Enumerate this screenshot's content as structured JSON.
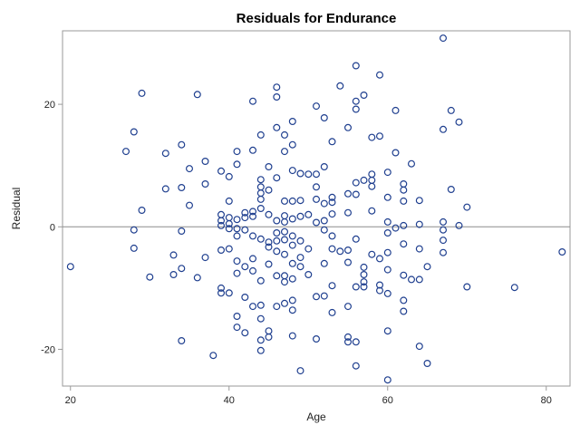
{
  "chart_data": {
    "type": "scatter",
    "title": "Residuals for Endurance",
    "xlabel": "Age",
    "ylabel": "Residual",
    "xlim": [
      19,
      83
    ],
    "ylim": [
      -26,
      32
    ],
    "xticks": [
      20,
      40,
      60,
      80
    ],
    "yticks": [
      -20,
      0,
      20
    ],
    "reference_line_y": 0,
    "grid": false,
    "legend": "none",
    "marker": "open-circle",
    "marker_color": "#1f3f8f",
    "points": [
      [
        20,
        -6.5
      ],
      [
        27,
        12.3
      ],
      [
        28,
        15.5
      ],
      [
        28,
        -0.5
      ],
      [
        28,
        -3.5
      ],
      [
        29,
        21.8
      ],
      [
        29,
        2.7
      ],
      [
        30,
        -8.2
      ],
      [
        32,
        12.0
      ],
      [
        32,
        6.2
      ],
      [
        33,
        -4.6
      ],
      [
        33,
        -7.8
      ],
      [
        34,
        13.4
      ],
      [
        34,
        6.4
      ],
      [
        34,
        -0.7
      ],
      [
        34,
        -6.8
      ],
      [
        34,
        -18.6
      ],
      [
        35,
        9.5
      ],
      [
        35,
        3.5
      ],
      [
        36,
        21.6
      ],
      [
        36,
        -8.3
      ],
      [
        37,
        10.7
      ],
      [
        37,
        7.0
      ],
      [
        37,
        -5.0
      ],
      [
        38,
        -21.0
      ],
      [
        39,
        9.1
      ],
      [
        39,
        2.0
      ],
      [
        39,
        1.0
      ],
      [
        39,
        0.2
      ],
      [
        39,
        -3.8
      ],
      [
        39,
        -10.0
      ],
      [
        39,
        -10.8
      ],
      [
        40,
        8.2
      ],
      [
        40,
        4.2
      ],
      [
        40,
        1.5
      ],
      [
        40,
        0.5
      ],
      [
        40,
        -0.3
      ],
      [
        40,
        -3.6
      ],
      [
        40,
        -10.8
      ],
      [
        41,
        12.3
      ],
      [
        41,
        10.2
      ],
      [
        41,
        1.2
      ],
      [
        41,
        -0.3
      ],
      [
        41,
        -1.5
      ],
      [
        41,
        -5.6
      ],
      [
        41,
        -7.6
      ],
      [
        41,
        -14.6
      ],
      [
        41,
        -16.4
      ],
      [
        42,
        2.3
      ],
      [
        42,
        1.5
      ],
      [
        42,
        -0.5
      ],
      [
        42,
        -6.5
      ],
      [
        42,
        -11.5
      ],
      [
        42,
        -17.3
      ],
      [
        43,
        20.5
      ],
      [
        43,
        12.5
      ],
      [
        43,
        2.5
      ],
      [
        43,
        1.7
      ],
      [
        43,
        -1.5
      ],
      [
        43,
        -5.2
      ],
      [
        43,
        -7.2
      ],
      [
        43,
        -13.0
      ],
      [
        44,
        15.0
      ],
      [
        44,
        7.7
      ],
      [
        44,
        6.5
      ],
      [
        44,
        5.5
      ],
      [
        44,
        4.5
      ],
      [
        44,
        3.0
      ],
      [
        44,
        -2.0
      ],
      [
        44,
        -8.8
      ],
      [
        44,
        -12.8
      ],
      [
        44,
        -15.0
      ],
      [
        44,
        -18.5
      ],
      [
        44,
        -20.2
      ],
      [
        45,
        9.8
      ],
      [
        45,
        6.0
      ],
      [
        45,
        2.0
      ],
      [
        45,
        -2.5
      ],
      [
        45,
        -3.3
      ],
      [
        45,
        -6.1
      ],
      [
        45,
        -17.0
      ],
      [
        45,
        -18.0
      ],
      [
        46,
        22.8
      ],
      [
        46,
        21.2
      ],
      [
        46,
        16.2
      ],
      [
        46,
        8.0
      ],
      [
        46,
        1.0
      ],
      [
        46,
        -1.0
      ],
      [
        46,
        -2.3
      ],
      [
        46,
        -4.0
      ],
      [
        46,
        -8.0
      ],
      [
        46,
        -13.0
      ],
      [
        47,
        15.0
      ],
      [
        47,
        12.3
      ],
      [
        47,
        4.2
      ],
      [
        47,
        1.8
      ],
      [
        47,
        0.8
      ],
      [
        47,
        -0.8
      ],
      [
        47,
        -2.1
      ],
      [
        47,
        -4.5
      ],
      [
        47,
        -8.0
      ],
      [
        47,
        -9.0
      ],
      [
        47,
        -12.5
      ],
      [
        48,
        17.2
      ],
      [
        48,
        13.4
      ],
      [
        48,
        9.2
      ],
      [
        48,
        4.2
      ],
      [
        48,
        1.3
      ],
      [
        48,
        -1.5
      ],
      [
        48,
        -3.0
      ],
      [
        48,
        -6.0
      ],
      [
        48,
        -8.5
      ],
      [
        48,
        -12.0
      ],
      [
        48,
        -13.6
      ],
      [
        48,
        -17.8
      ],
      [
        49,
        8.7
      ],
      [
        49,
        4.3
      ],
      [
        49,
        1.7
      ],
      [
        49,
        -2.3
      ],
      [
        49,
        -5.0
      ],
      [
        49,
        -6.5
      ],
      [
        49,
        -23.5
      ],
      [
        50,
        8.6
      ],
      [
        50,
        2.0
      ],
      [
        50,
        -3.6
      ],
      [
        50,
        -7.8
      ],
      [
        51,
        19.7
      ],
      [
        51,
        8.6
      ],
      [
        51,
        6.5
      ],
      [
        51,
        4.5
      ],
      [
        51,
        0.7
      ],
      [
        51,
        -11.4
      ],
      [
        51,
        -18.3
      ],
      [
        52,
        17.8
      ],
      [
        52,
        9.8
      ],
      [
        52,
        3.8
      ],
      [
        52,
        1.0
      ],
      [
        52,
        -0.5
      ],
      [
        52,
        -6.0
      ],
      [
        52,
        -11.3
      ],
      [
        53,
        13.9
      ],
      [
        53,
        4.8
      ],
      [
        53,
        4.0
      ],
      [
        53,
        2.1
      ],
      [
        53,
        -1.5
      ],
      [
        53,
        -3.6
      ],
      [
        53,
        -9.6
      ],
      [
        53,
        -14.0
      ],
      [
        54,
        23.0
      ],
      [
        54,
        -4.0
      ],
      [
        55,
        16.2
      ],
      [
        55,
        5.4
      ],
      [
        55,
        2.3
      ],
      [
        55,
        -3.8
      ],
      [
        55,
        -5.8
      ],
      [
        55,
        -13.0
      ],
      [
        55,
        -18.0
      ],
      [
        55,
        -18.8
      ],
      [
        56,
        26.3
      ],
      [
        56,
        20.5
      ],
      [
        56,
        19.2
      ],
      [
        56,
        7.2
      ],
      [
        56,
        5.3
      ],
      [
        56,
        -2.0
      ],
      [
        56,
        -9.8
      ],
      [
        56,
        -18.8
      ],
      [
        56,
        -22.7
      ],
      [
        57,
        21.5
      ],
      [
        57,
        7.6
      ],
      [
        57,
        -6.6
      ],
      [
        57,
        -7.8
      ],
      [
        57,
        -9.0
      ],
      [
        57,
        -9.8
      ],
      [
        58,
        14.6
      ],
      [
        58,
        8.6
      ],
      [
        58,
        7.6
      ],
      [
        58,
        6.6
      ],
      [
        58,
        2.6
      ],
      [
        58,
        -4.5
      ],
      [
        59,
        24.8
      ],
      [
        59,
        14.8
      ],
      [
        59,
        -5.2
      ],
      [
        59,
        -9.5
      ],
      [
        59,
        -10.4
      ],
      [
        60,
        8.9
      ],
      [
        60,
        4.8
      ],
      [
        60,
        0.8
      ],
      [
        60,
        -1.0
      ],
      [
        60,
        -4.2
      ],
      [
        60,
        -7.0
      ],
      [
        60,
        -10.9
      ],
      [
        60,
        -17.0
      ],
      [
        60,
        -25.0
      ],
      [
        61,
        19.0
      ],
      [
        61,
        12.1
      ],
      [
        61,
        -0.2
      ],
      [
        62,
        7.0
      ],
      [
        62,
        6.0
      ],
      [
        62,
        4.2
      ],
      [
        62,
        0.2
      ],
      [
        62,
        -2.8
      ],
      [
        62,
        -7.9
      ],
      [
        62,
        -12.0
      ],
      [
        62,
        -13.8
      ],
      [
        63,
        10.3
      ],
      [
        63,
        -8.6
      ],
      [
        64,
        4.3
      ],
      [
        64,
        0.4
      ],
      [
        64,
        -3.6
      ],
      [
        64,
        -8.6
      ],
      [
        64,
        -19.5
      ],
      [
        65,
        -6.5
      ],
      [
        65,
        -22.3
      ],
      [
        67,
        30.8
      ],
      [
        67,
        15.9
      ],
      [
        67,
        0.8
      ],
      [
        67,
        -0.5
      ],
      [
        67,
        -2.2
      ],
      [
        67,
        -4.2
      ],
      [
        68,
        19.0
      ],
      [
        68,
        6.1
      ],
      [
        69,
        17.1
      ],
      [
        69,
        0.2
      ],
      [
        70,
        3.2
      ],
      [
        70,
        -9.8
      ],
      [
        76,
        -9.9
      ],
      [
        82,
        -4.1
      ]
    ]
  }
}
